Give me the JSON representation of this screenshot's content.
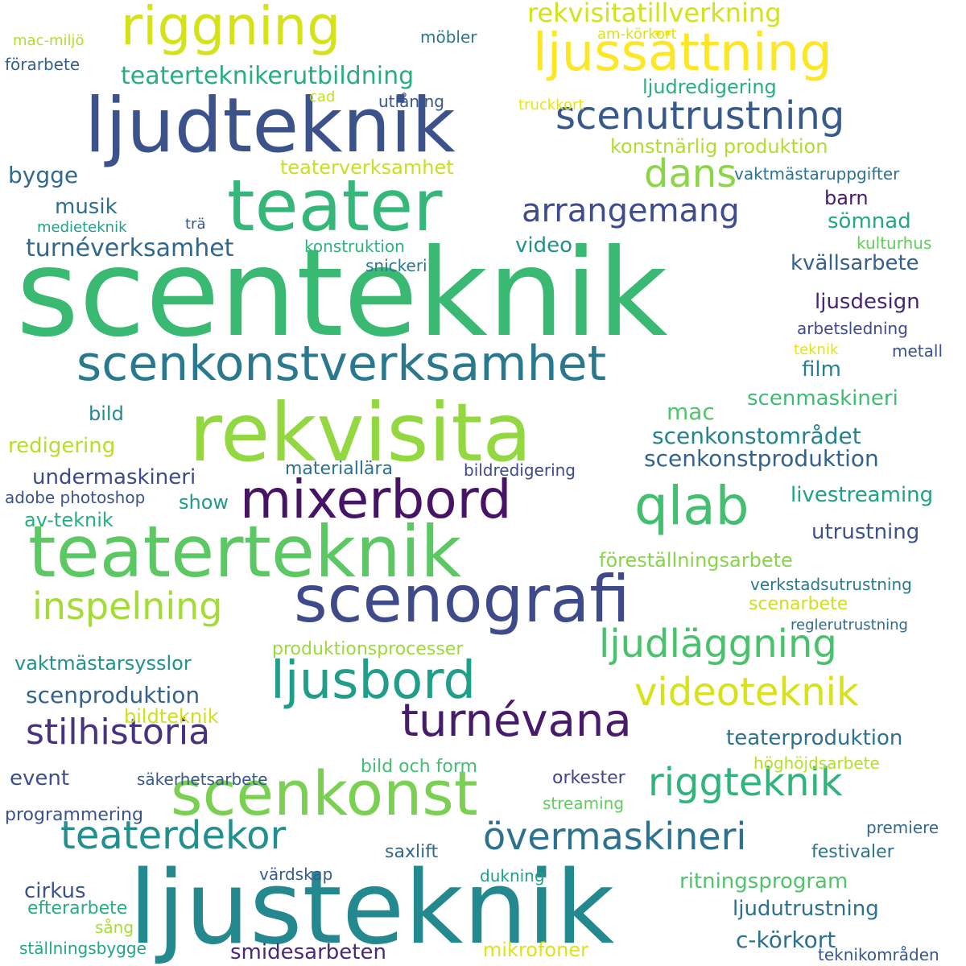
{
  "words": [
    {
      "text": "scenteknik",
      "color": "#3ab973"
    },
    {
      "text": "ljusteknik",
      "color": "#23898e"
    },
    {
      "text": "rekvisita",
      "color": "#93d741"
    },
    {
      "text": "ljudteknik",
      "color": "#3b528b"
    },
    {
      "text": "teaterteknik",
      "color": "#5cc863"
    },
    {
      "text": "teater",
      "color": "#35b779"
    },
    {
      "text": "scenografi",
      "color": "#3e4a89"
    },
    {
      "text": "scenkonst",
      "color": "#7ad151"
    },
    {
      "text": "riggning",
      "color": "#d5e21a"
    },
    {
      "text": "ljussättning",
      "color": "#fde725"
    },
    {
      "text": "mixerbord",
      "color": "#471365"
    },
    {
      "text": "qlab",
      "color": "#44bf70"
    },
    {
      "text": "scenkonstverksamhet",
      "color": "#2a788e"
    },
    {
      "text": "ljusbord",
      "color": "#1f9e89"
    },
    {
      "text": "turnévana",
      "color": "#481a6c"
    },
    {
      "text": "scenutrustning",
      "color": "#38598c"
    },
    {
      "text": "inspelning",
      "color": "#a5db36"
    },
    {
      "text": "videoteknik",
      "color": "#d8e219"
    },
    {
      "text": "ljudläggning",
      "color": "#4ac16d"
    },
    {
      "text": "riggteknik",
      "color": "#2fb47c"
    },
    {
      "text": "stilhistoria",
      "color": "#46327e"
    },
    {
      "text": "teaterdekor",
      "color": "#218f8d"
    },
    {
      "text": "övermaskineri",
      "color": "#2c728e"
    },
    {
      "text": "dans",
      "color": "#8bd646"
    },
    {
      "text": "arrangemang",
      "color": "#3e4c8a"
    },
    {
      "text": "rekvisitatillverkning",
      "color": "#d2e21b"
    },
    {
      "text": "teaterteknikerutbildning",
      "color": "#26ad81"
    },
    {
      "text": "scenkonstproduktion",
      "color": "#33638d"
    },
    {
      "text": "scenkonstområdet",
      "color": "#25838e"
    },
    {
      "text": "konstnärlig produktion",
      "color": "#b2dd2d"
    },
    {
      "text": "ljudredigering",
      "color": "#29af7f"
    },
    {
      "text": "musik",
      "color": "#2d708e"
    },
    {
      "text": "turnéverksamhet",
      "color": "#31688e"
    },
    {
      "text": "bygge",
      "color": "#306a8e"
    },
    {
      "text": "teaterverksamhet",
      "color": "#c8e020"
    },
    {
      "text": "sömnad",
      "color": "#22a785"
    },
    {
      "text": "video",
      "color": "#21908d"
    },
    {
      "text": "kvällsarbete",
      "color": "#355f8d"
    },
    {
      "text": "ljusdesign",
      "color": "#482475"
    },
    {
      "text": "scenmaskineri",
      "color": "#3fbc73"
    },
    {
      "text": "mac",
      "color": "#52c569"
    },
    {
      "text": "film",
      "color": "#26818e"
    },
    {
      "text": "redigering",
      "color": "#b8de29"
    },
    {
      "text": "bild",
      "color": "#238a8d"
    },
    {
      "text": "undermaskineri",
      "color": "#3e4989"
    },
    {
      "text": "materiallära",
      "color": "#2e6f8e"
    },
    {
      "text": "show",
      "color": "#1e9c89"
    },
    {
      "text": "av-teknik",
      "color": "#28ae80"
    },
    {
      "text": "föreställningsarbete",
      "color": "#86d549"
    },
    {
      "text": "utrustning",
      "color": "#3b528b"
    },
    {
      "text": "livestreaming",
      "color": "#1fa187"
    },
    {
      "text": "scenarbete",
      "color": "#cde11d"
    },
    {
      "text": "vaktmästarsysslor",
      "color": "#20928c"
    },
    {
      "text": "scenproduktion",
      "color": "#33628d"
    },
    {
      "text": "bildteknik",
      "color": "#d0e11c"
    },
    {
      "text": "produktionsprocesser",
      "color": "#9bd93c"
    },
    {
      "text": "teaterproduktion",
      "color": "#2d718e"
    },
    {
      "text": "höghöjdsarbete",
      "color": "#b5de2b"
    },
    {
      "text": "event",
      "color": "#3d4e8a"
    },
    {
      "text": "säkerhetsarbete",
      "color": "#38598c"
    },
    {
      "text": "bild och form",
      "color": "#42be71"
    },
    {
      "text": "orkester",
      "color": "#404588"
    },
    {
      "text": "streaming",
      "color": "#63cb5f"
    },
    {
      "text": "programmering",
      "color": "#3b528b"
    },
    {
      "text": "premiere",
      "color": "#31688e"
    },
    {
      "text": "festivaler",
      "color": "#2c728e"
    },
    {
      "text": "saxlift",
      "color": "#31668e"
    },
    {
      "text": "värdskap",
      "color": "#375b8d"
    },
    {
      "text": "dukning",
      "color": "#1fa188"
    },
    {
      "text": "cirkus",
      "color": "#3b528b"
    },
    {
      "text": "ritningsprogram",
      "color": "#50c46a"
    },
    {
      "text": "efterarbete",
      "color": "#27ad81"
    },
    {
      "text": "ljudutrustning",
      "color": "#2d708e"
    },
    {
      "text": "sång",
      "color": "#a8db34"
    },
    {
      "text": "c-körkort",
      "color": "#2d708e"
    },
    {
      "text": "smidesarbeten",
      "color": "#482979"
    },
    {
      "text": "mikrofoner",
      "color": "#dde318"
    },
    {
      "text": "ställningsbygge",
      "color": "#21a685"
    },
    {
      "text": "teknikområden",
      "color": "#39568c"
    },
    {
      "text": "mac-miljö",
      "color": "#b0dd2f"
    },
    {
      "text": "möbler",
      "color": "#2a768e"
    },
    {
      "text": "förarbete",
      "color": "#355e8d"
    },
    {
      "text": "am-körkort",
      "color": "#d8e219"
    },
    {
      "text": "cad",
      "color": "#c5e021"
    },
    {
      "text": "utlåning",
      "color": "#39568c"
    },
    {
      "text": "truckkort",
      "color": "#e5e419"
    },
    {
      "text": "vaktmästaruppgifter",
      "color": "#2c718e"
    },
    {
      "text": "barn",
      "color": "#481b6d"
    },
    {
      "text": "medieteknik",
      "color": "#1fa088"
    },
    {
      "text": "trä",
      "color": "#38588c"
    },
    {
      "text": "konstruktion",
      "color": "#2eb37c"
    },
    {
      "text": "kulturhus",
      "color": "#65cb5e"
    },
    {
      "text": "snickeri",
      "color": "#2a788e"
    },
    {
      "text": "arbetsledning",
      "color": "#3e4a89"
    },
    {
      "text": "teknik",
      "color": "#dfe318"
    },
    {
      "text": "metall",
      "color": "#3b528b"
    },
    {
      "text": "bildredigering",
      "color": "#3e4989"
    },
    {
      "text": "adobe photoshop",
      "color": "#3b528b"
    },
    {
      "text": "verkstadsutrustning",
      "color": "#2a788e"
    },
    {
      "text": "reglerutrustning",
      "color": "#31688e"
    }
  ]
}
